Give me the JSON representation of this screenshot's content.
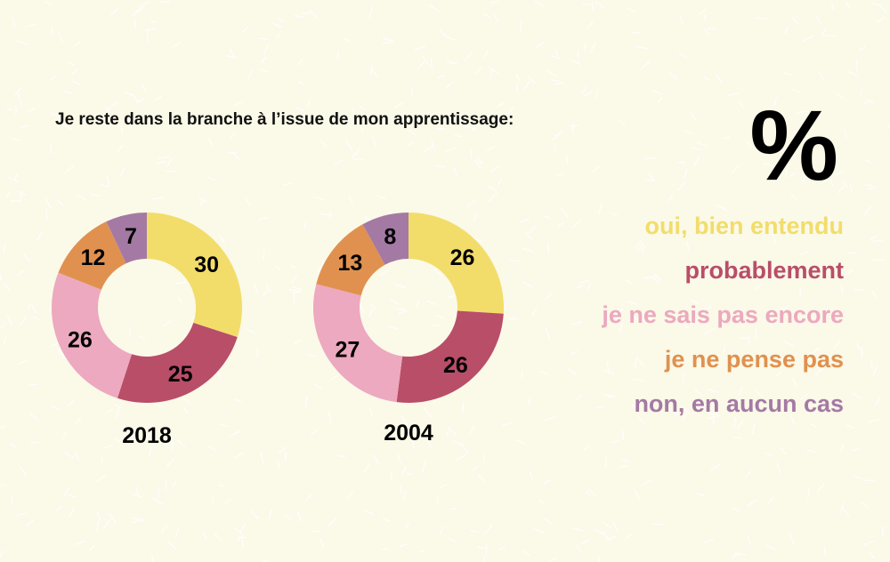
{
  "chart_data": {
    "type": "pie",
    "title": "Je reste dans la branche à l’issue de mon apprentissage:",
    "unit": "%",
    "categories": [
      "oui, bien entendu",
      "probablement",
      "je ne sais pas encore",
      "je ne pense pas",
      "non, en aucun cas"
    ],
    "colors": [
      "#f2dd6b",
      "#b94e69",
      "#eca9bf",
      "#e0914f",
      "#a47aa4"
    ],
    "charts": [
      {
        "label": "2018",
        "values": [
          30,
          25,
          26,
          12,
          7
        ]
      },
      {
        "label": "2004",
        "values": [
          26,
          26,
          27,
          13,
          8
        ]
      }
    ],
    "legend": "right"
  }
}
